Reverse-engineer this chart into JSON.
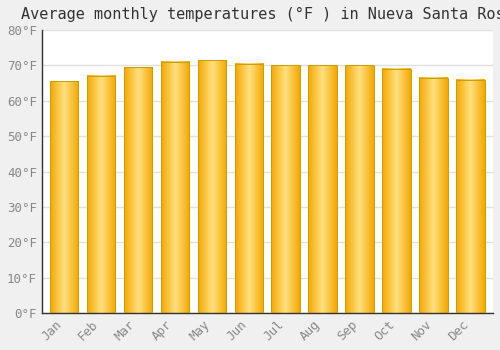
{
  "title": "Average monthly temperatures (°F ) in Nueva Santa Rosa",
  "months": [
    "Jan",
    "Feb",
    "Mar",
    "Apr",
    "May",
    "Jun",
    "Jul",
    "Aug",
    "Sep",
    "Oct",
    "Nov",
    "Dec"
  ],
  "values": [
    65.5,
    67.0,
    69.5,
    71.0,
    71.5,
    70.5,
    70.0,
    70.0,
    70.0,
    69.0,
    66.5,
    66.0
  ],
  "bar_color_center": "#FFE080",
  "bar_color_edge": "#F5A800",
  "ylim": [
    0,
    80
  ],
  "yticks": [
    0,
    10,
    20,
    30,
    40,
    50,
    60,
    70,
    80
  ],
  "ytick_labels": [
    "0°F",
    "10°F",
    "20°F",
    "30°F",
    "40°F",
    "50°F",
    "60°F",
    "70°F",
    "80°F"
  ],
  "plot_bg_color": "#ffffff",
  "fig_bg_color": "#f0f0f0",
  "grid_color": "#e0e0e0",
  "title_fontsize": 11,
  "tick_fontsize": 9,
  "bar_edge_color": "#c8a000",
  "bar_width": 0.78
}
